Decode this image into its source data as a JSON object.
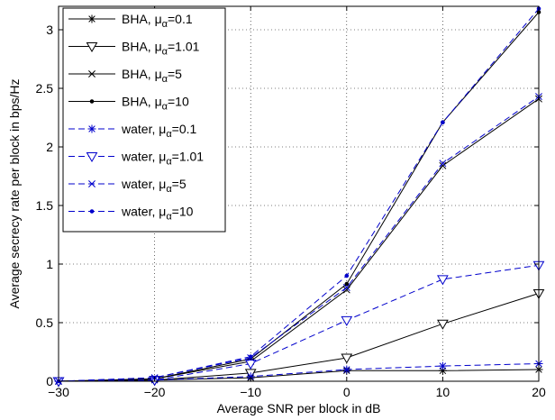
{
  "chart_data": {
    "type": "line",
    "xlabel": "Average SNR per block in dB",
    "ylabel": "Average secrecy rate per block in bps/Hz",
    "xlim": [
      -30,
      20
    ],
    "ylim": [
      0,
      3.2
    ],
    "x_ticks": [
      "−30",
      "−20",
      "−10",
      "0",
      "10",
      "20"
    ],
    "y_ticks": [
      "0",
      "0.5",
      "1",
      "1.5",
      "2",
      "2.5",
      "3"
    ],
    "grid": true,
    "legend_position": "top-left",
    "x": [
      -30,
      -20,
      -10,
      0,
      10,
      20
    ],
    "series": [
      {
        "name": "BHA, μ",
        "sub": "α",
        "suffix": "=0.1",
        "color": "#000000",
        "dash": "solid",
        "marker": "asterisk",
        "values": [
          0.0,
          0.01,
          0.03,
          0.09,
          0.09,
          0.1
        ]
      },
      {
        "name": "BHA, μ",
        "sub": "α",
        "suffix": "=1.01",
        "color": "#000000",
        "dash": "solid",
        "marker": "triangle-down",
        "values": [
          0.0,
          0.01,
          0.07,
          0.2,
          0.49,
          0.75
        ]
      },
      {
        "name": "BHA, μ",
        "sub": "α",
        "suffix": "=5",
        "color": "#000000",
        "dash": "solid",
        "marker": "x",
        "values": [
          0.0,
          0.02,
          0.17,
          0.78,
          1.84,
          2.41
        ]
      },
      {
        "name": "BHA, μ",
        "sub": "α",
        "suffix": "=10",
        "color": "#000000",
        "dash": "solid",
        "marker": "dot",
        "values": [
          0.0,
          0.02,
          0.19,
          0.83,
          2.21,
          3.15
        ]
      },
      {
        "name": "water, μ",
        "sub": "α",
        "suffix": "=0.1",
        "color": "#0000cc",
        "dash": "dashed",
        "marker": "asterisk",
        "values": [
          0.0,
          0.01,
          0.04,
          0.1,
          0.13,
          0.15
        ]
      },
      {
        "name": "water, μ",
        "sub": "α",
        "suffix": "=1.01",
        "color": "#0000cc",
        "dash": "dashed",
        "marker": "triangle-down",
        "values": [
          0.0,
          0.01,
          0.15,
          0.52,
          0.87,
          0.99
        ]
      },
      {
        "name": "water, μ",
        "sub": "α",
        "suffix": "=5",
        "color": "#0000cc",
        "dash": "dashed",
        "marker": "x",
        "values": [
          0.0,
          0.03,
          0.2,
          0.8,
          1.86,
          2.43
        ]
      },
      {
        "name": "water, μ",
        "sub": "α",
        "suffix": "=10",
        "color": "#0000cc",
        "dash": "dashed",
        "marker": "dot",
        "values": [
          0.0,
          0.03,
          0.21,
          0.9,
          2.21,
          3.18
        ]
      }
    ]
  }
}
